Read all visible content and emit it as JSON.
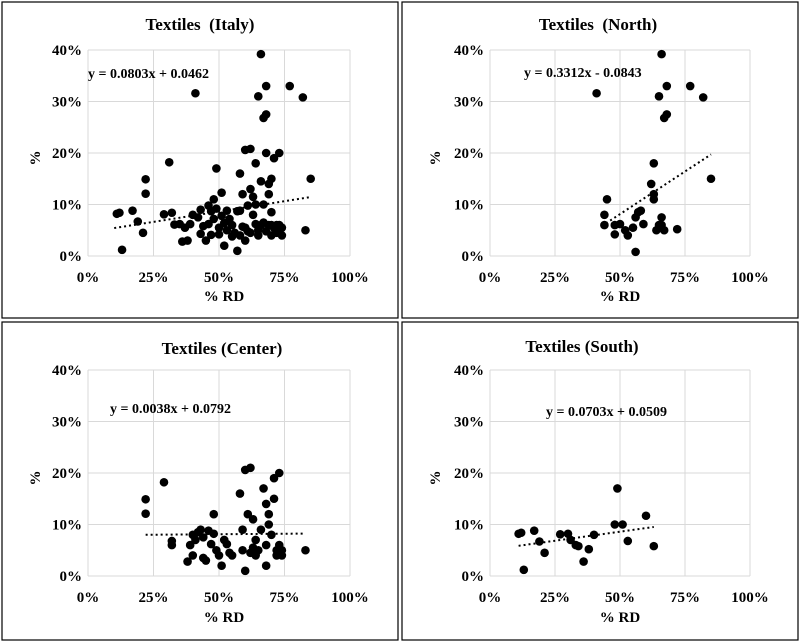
{
  "chart_data": [
    {
      "type": "scatter",
      "title": "Textiles  (Italy)",
      "xlabel": "% RD",
      "ylabel": "%",
      "xlim": [
        0,
        1
      ],
      "ylim": [
        0,
        0.4
      ],
      "x_ticks": [
        "0%",
        "25%",
        "50%",
        "75%",
        "100%"
      ],
      "y_ticks": [
        "0%",
        "10%",
        "20%",
        "30%",
        "40%"
      ],
      "grid": true,
      "trendline": {
        "label": "y = 0.0803x + 0.0462",
        "slope": 0.0803,
        "intercept": 0.0462,
        "x_range": [
          0.1,
          0.85
        ]
      },
      "points": [
        [
          0.11,
          0.082
        ],
        [
          0.12,
          0.084
        ],
        [
          0.13,
          0.012
        ],
        [
          0.17,
          0.088
        ],
        [
          0.19,
          0.067
        ],
        [
          0.21,
          0.045
        ],
        [
          0.22,
          0.121
        ],
        [
          0.22,
          0.149
        ],
        [
          0.29,
          0.081
        ],
        [
          0.31,
          0.182
        ],
        [
          0.32,
          0.084
        ],
        [
          0.33,
          0.061
        ],
        [
          0.35,
          0.062
        ],
        [
          0.36,
          0.028
        ],
        [
          0.37,
          0.055
        ],
        [
          0.38,
          0.03
        ],
        [
          0.39,
          0.062
        ],
        [
          0.4,
          0.08
        ],
        [
          0.41,
          0.316
        ],
        [
          0.42,
          0.075
        ],
        [
          0.43,
          0.09
        ],
        [
          0.43,
          0.043
        ],
        [
          0.44,
          0.058
        ],
        [
          0.45,
          0.03
        ],
        [
          0.46,
          0.098
        ],
        [
          0.46,
          0.062
        ],
        [
          0.47,
          0.087
        ],
        [
          0.47,
          0.041
        ],
        [
          0.48,
          0.11
        ],
        [
          0.48,
          0.072
        ],
        [
          0.49,
          0.092
        ],
        [
          0.49,
          0.17
        ],
        [
          0.5,
          0.055
        ],
        [
          0.5,
          0.042
        ],
        [
          0.51,
          0.123
        ],
        [
          0.51,
          0.078
        ],
        [
          0.52,
          0.064
        ],
        [
          0.52,
          0.02
        ],
        [
          0.53,
          0.088
        ],
        [
          0.53,
          0.05
        ],
        [
          0.54,
          0.072
        ],
        [
          0.55,
          0.038
        ],
        [
          0.55,
          0.06
        ],
        [
          0.56,
          0.045
        ],
        [
          0.57,
          0.087
        ],
        [
          0.57,
          0.01
        ],
        [
          0.58,
          0.088
        ],
        [
          0.58,
          0.16
        ],
        [
          0.59,
          0.12
        ],
        [
          0.59,
          0.057
        ],
        [
          0.6,
          0.206
        ],
        [
          0.6,
          0.03
        ],
        [
          0.61,
          0.098
        ],
        [
          0.61,
          0.048
        ],
        [
          0.62,
          0.208
        ],
        [
          0.62,
          0.13
        ],
        [
          0.63,
          0.115
        ],
        [
          0.63,
          0.08
        ],
        [
          0.64,
          0.18
        ],
        [
          0.64,
          0.062
        ],
        [
          0.65,
          0.31
        ],
        [
          0.65,
          0.05
        ],
        [
          0.66,
          0.392
        ],
        [
          0.66,
          0.145
        ],
        [
          0.67,
          0.268
        ],
        [
          0.67,
          0.1
        ],
        [
          0.67,
          0.065
        ],
        [
          0.68,
          0.33
        ],
        [
          0.68,
          0.275
        ],
        [
          0.68,
          0.2
        ],
        [
          0.68,
          0.048
        ],
        [
          0.69,
          0.12
        ],
        [
          0.69,
          0.14
        ],
        [
          0.69,
          0.06
        ],
        [
          0.7,
          0.15
        ],
        [
          0.7,
          0.085
        ],
        [
          0.7,
          0.04
        ],
        [
          0.71,
          0.19
        ],
        [
          0.71,
          0.055
        ],
        [
          0.72,
          0.045
        ],
        [
          0.73,
          0.2
        ],
        [
          0.73,
          0.06
        ],
        [
          0.74,
          0.04
        ],
        [
          0.74,
          0.055
        ],
        [
          0.77,
          0.33
        ],
        [
          0.82,
          0.308
        ],
        [
          0.83,
          0.05
        ],
        [
          0.85,
          0.15
        ],
        [
          0.65,
          0.04
        ],
        [
          0.62,
          0.045
        ],
        [
          0.66,
          0.06
        ],
        [
          0.64,
          0.1
        ],
        [
          0.72,
          0.06
        ],
        [
          0.7,
          0.06
        ],
        [
          0.6,
          0.055
        ],
        [
          0.58,
          0.04
        ]
      ]
    },
    {
      "type": "scatter",
      "title": "Textiles  (North)",
      "xlabel": "% RD",
      "ylabel": "%",
      "xlim": [
        0,
        1
      ],
      "ylim": [
        0,
        0.4
      ],
      "x_ticks": [
        "0%",
        "25%",
        "50%",
        "75%",
        "100%"
      ],
      "y_ticks": [
        "0%",
        "10%",
        "20%",
        "30%",
        "40%"
      ],
      "grid": true,
      "trendline": {
        "label": "y = 0.3312x - 0.0843",
        "slope": 0.3312,
        "intercept": -0.0843,
        "x_range": [
          0.43,
          0.85
        ]
      },
      "points": [
        [
          0.41,
          0.316
        ],
        [
          0.44,
          0.08
        ],
        [
          0.44,
          0.06
        ],
        [
          0.45,
          0.11
        ],
        [
          0.48,
          0.06
        ],
        [
          0.48,
          0.042
        ],
        [
          0.5,
          0.062
        ],
        [
          0.52,
          0.05
        ],
        [
          0.53,
          0.04
        ],
        [
          0.55,
          0.055
        ],
        [
          0.56,
          0.008
        ],
        [
          0.56,
          0.075
        ],
        [
          0.57,
          0.085
        ],
        [
          0.58,
          0.088
        ],
        [
          0.59,
          0.062
        ],
        [
          0.62,
          0.14
        ],
        [
          0.63,
          0.18
        ],
        [
          0.63,
          0.12
        ],
        [
          0.63,
          0.11
        ],
        [
          0.64,
          0.05
        ],
        [
          0.65,
          0.31
        ],
        [
          0.65,
          0.06
        ],
        [
          0.66,
          0.392
        ],
        [
          0.66,
          0.075
        ],
        [
          0.67,
          0.268
        ],
        [
          0.67,
          0.05
        ],
        [
          0.68,
          0.33
        ],
        [
          0.68,
          0.275
        ],
        [
          0.72,
          0.052
        ],
        [
          0.77,
          0.33
        ],
        [
          0.82,
          0.308
        ],
        [
          0.85,
          0.15
        ],
        [
          0.66,
          0.06
        ]
      ]
    },
    {
      "type": "scatter",
      "title": "Textiles (Center)",
      "xlabel": "% RD",
      "ylabel": "%",
      "xlim": [
        0,
        1
      ],
      "ylim": [
        0,
        0.4
      ],
      "x_ticks": [
        "0%",
        "25%",
        "50%",
        "75%",
        "100%"
      ],
      "y_ticks": [
        "0%",
        "10%",
        "20%",
        "30%",
        "40%"
      ],
      "grid": true,
      "trendline": {
        "label": "y = 0.0038x + 0.0792",
        "slope": 0.0038,
        "intercept": 0.0792,
        "x_range": [
          0.22,
          0.83
        ]
      },
      "points": [
        [
          0.22,
          0.149
        ],
        [
          0.22,
          0.121
        ],
        [
          0.29,
          0.182
        ],
        [
          0.32,
          0.068
        ],
        [
          0.32,
          0.06
        ],
        [
          0.38,
          0.028
        ],
        [
          0.39,
          0.06
        ],
        [
          0.4,
          0.08
        ],
        [
          0.4,
          0.04
        ],
        [
          0.41,
          0.07
        ],
        [
          0.42,
          0.085
        ],
        [
          0.43,
          0.09
        ],
        [
          0.44,
          0.075
        ],
        [
          0.44,
          0.035
        ],
        [
          0.45,
          0.03
        ],
        [
          0.46,
          0.088
        ],
        [
          0.47,
          0.062
        ],
        [
          0.48,
          0.12
        ],
        [
          0.48,
          0.082
        ],
        [
          0.49,
          0.05
        ],
        [
          0.5,
          0.04
        ],
        [
          0.51,
          0.02
        ],
        [
          0.52,
          0.07
        ],
        [
          0.53,
          0.062
        ],
        [
          0.54,
          0.045
        ],
        [
          0.55,
          0.04
        ],
        [
          0.58,
          0.16
        ],
        [
          0.59,
          0.09
        ],
        [
          0.59,
          0.05
        ],
        [
          0.6,
          0.206
        ],
        [
          0.6,
          0.01
        ],
        [
          0.61,
          0.12
        ],
        [
          0.62,
          0.045
        ],
        [
          0.62,
          0.21
        ],
        [
          0.63,
          0.11
        ],
        [
          0.63,
          0.055
        ],
        [
          0.64,
          0.07
        ],
        [
          0.65,
          0.05
        ],
        [
          0.66,
          0.09
        ],
        [
          0.67,
          0.17
        ],
        [
          0.68,
          0.14
        ],
        [
          0.68,
          0.06
        ],
        [
          0.68,
          0.02
        ],
        [
          0.69,
          0.12
        ],
        [
          0.69,
          0.1
        ],
        [
          0.7,
          0.08
        ],
        [
          0.71,
          0.15
        ],
        [
          0.71,
          0.19
        ],
        [
          0.72,
          0.05
        ],
        [
          0.72,
          0.04
        ],
        [
          0.73,
          0.2
        ],
        [
          0.73,
          0.06
        ],
        [
          0.74,
          0.04
        ],
        [
          0.74,
          0.05
        ],
        [
          0.83,
          0.05
        ],
        [
          0.64,
          0.04
        ]
      ]
    },
    {
      "type": "scatter",
      "title": "Textiles (South)",
      "xlabel": "% RD",
      "ylabel": "%",
      "xlim": [
        0,
        1
      ],
      "ylim": [
        0,
        0.4
      ],
      "x_ticks": [
        "0%",
        "25%",
        "50%",
        "75%",
        "100%"
      ],
      "y_ticks": [
        "0%",
        "10%",
        "20%",
        "30%",
        "40%"
      ],
      "grid": true,
      "trendline": {
        "label": "y = 0.0703x + 0.0509",
        "slope": 0.0703,
        "intercept": 0.0509,
        "x_range": [
          0.11,
          0.63
        ]
      },
      "points": [
        [
          0.11,
          0.082
        ],
        [
          0.12,
          0.084
        ],
        [
          0.13,
          0.012
        ],
        [
          0.17,
          0.088
        ],
        [
          0.19,
          0.067
        ],
        [
          0.21,
          0.045
        ],
        [
          0.27,
          0.081
        ],
        [
          0.3,
          0.082
        ],
        [
          0.31,
          0.07
        ],
        [
          0.33,
          0.06
        ],
        [
          0.34,
          0.058
        ],
        [
          0.36,
          0.028
        ],
        [
          0.38,
          0.052
        ],
        [
          0.4,
          0.08
        ],
        [
          0.48,
          0.1
        ],
        [
          0.49,
          0.17
        ],
        [
          0.51,
          0.1
        ],
        [
          0.53,
          0.068
        ],
        [
          0.6,
          0.117
        ],
        [
          0.63,
          0.058
        ]
      ]
    }
  ]
}
